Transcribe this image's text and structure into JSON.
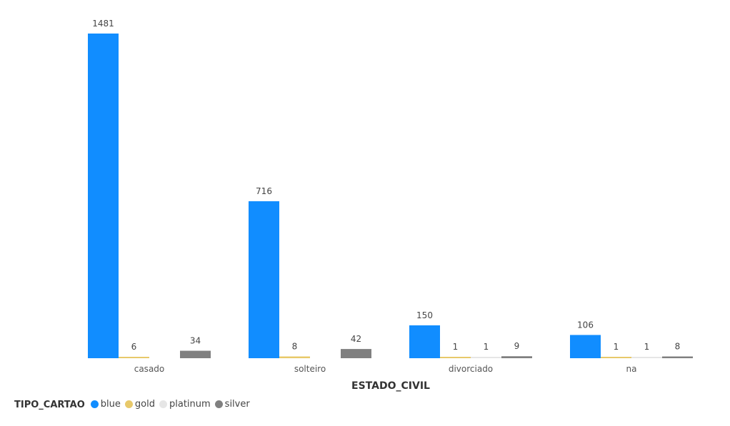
{
  "chart_data": {
    "type": "bar",
    "xlabel": "ESTADO_CIVIL",
    "ylabel": "",
    "categories": [
      "casado",
      "solteiro",
      "divorciado",
      "na"
    ],
    "series": [
      {
        "name": "blue",
        "color": "#118DFF",
        "values": [
          1481,
          716,
          150,
          106
        ]
      },
      {
        "name": "gold",
        "color": "#E8C96A",
        "values": [
          6,
          8,
          1,
          1
        ]
      },
      {
        "name": "platinum",
        "color": "#E6E6E6",
        "values": [
          0,
          0,
          1,
          1
        ]
      },
      {
        "name": "silver",
        "color": "#808080",
        "values": [
          34,
          42,
          9,
          8
        ]
      }
    ],
    "data_labels": [
      [
        "1481",
        "6",
        "",
        "34"
      ],
      [
        "716",
        "8",
        "",
        "42"
      ],
      [
        "150",
        "1",
        "1",
        "9"
      ],
      [
        "106",
        "1",
        "1",
        "8"
      ]
    ],
    "ylim": [
      0,
      1481
    ],
    "grid": false,
    "legend": {
      "title": "TIPO_CARTAO",
      "placement": "bottom-left"
    }
  }
}
